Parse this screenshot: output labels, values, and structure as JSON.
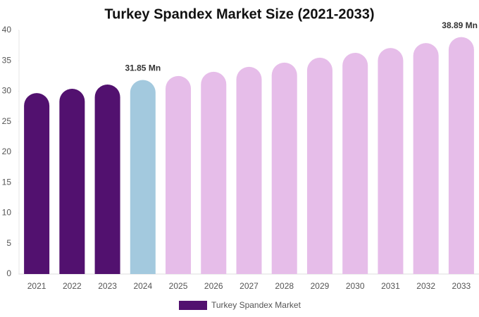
{
  "chart_data": {
    "type": "bar",
    "title": "Turkey Spandex Market Size (2021-2033)",
    "categories": [
      "2021",
      "2022",
      "2023",
      "2024",
      "2025",
      "2026",
      "2027",
      "2028",
      "2029",
      "2030",
      "2031",
      "2032",
      "2033"
    ],
    "series": [
      {
        "name": "Turkey Spandex Market",
        "color": "#52116f",
        "values": [
          29.7,
          30.4,
          31.1,
          31.85,
          32.5,
          33.2,
          34.0,
          34.7,
          35.5,
          36.3,
          37.1,
          37.9,
          38.89
        ],
        "value_labels": [
          null,
          null,
          null,
          "31.85 Mn",
          null,
          null,
          null,
          null,
          null,
          null,
          null,
          null,
          "38.89 Mn"
        ],
        "colors": [
          "#52116f",
          "#52116f",
          "#52116f",
          "#a3c9de",
          "#e6bde9",
          "#e6bde9",
          "#e6bde9",
          "#e6bde9",
          "#e6bde9",
          "#e6bde9",
          "#e6bde9",
          "#e6bde9",
          "#e6bde9"
        ]
      }
    ],
    "ylim": [
      0,
      40
    ],
    "yticks": [
      0,
      5,
      10,
      15,
      20,
      25,
      30,
      35,
      40
    ],
    "grid": false,
    "legend": "bottom"
  }
}
